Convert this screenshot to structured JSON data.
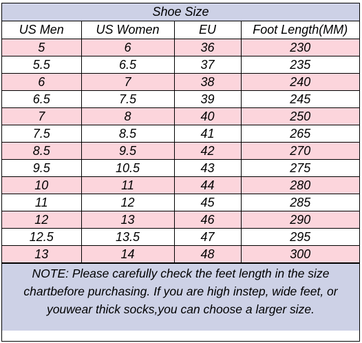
{
  "title": "Shoe Size",
  "headers": [
    "US Men",
    "US Women",
    "EU",
    "Foot Length(MM)"
  ],
  "rows": [
    [
      "5",
      "6",
      "36",
      "230"
    ],
    [
      "5.5",
      "6.5",
      "37",
      "235"
    ],
    [
      "6",
      "7",
      "38",
      "240"
    ],
    [
      "6.5",
      "7.5",
      "39",
      "245"
    ],
    [
      "7",
      "8",
      "40",
      "250"
    ],
    [
      "7.5",
      "8.5",
      "41",
      "265"
    ],
    [
      "8.5",
      "9.5",
      "42",
      "270"
    ],
    [
      "9.5",
      "10.5",
      "43",
      "275"
    ],
    [
      "10",
      "11",
      "44",
      "280"
    ],
    [
      "11",
      "12",
      "45",
      "285"
    ],
    [
      "12",
      "13",
      "46",
      "290"
    ],
    [
      "12.5",
      "13.5",
      "47",
      "295"
    ],
    [
      "13",
      "14",
      "48",
      "300"
    ]
  ],
  "note": "NOTE: Please carefully check the feet length in the size chartbefore purchasing. If you are high instep, wide feet, or youwear thick socks,you can choose a larger size.",
  "colors": {
    "header_bg": "#cdd1e6",
    "stripe": "#fcd5dc",
    "row": "#ffffff",
    "border": "#000000"
  }
}
